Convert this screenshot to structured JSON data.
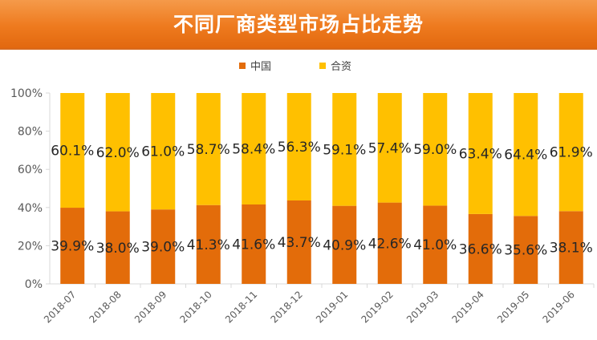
{
  "header": {
    "title": "不同厂商类型市场占比走势"
  },
  "chart_data": {
    "type": "bar",
    "stacked": true,
    "categories": [
      "2018-07",
      "2018-08",
      "2018-09",
      "2018-10",
      "2018-11",
      "2018-12",
      "2019-01",
      "2019-02",
      "2019-03",
      "2019-04",
      "2019-05",
      "2019-06"
    ],
    "series": [
      {
        "name": "中国",
        "color": "#e36c0a",
        "values": [
          39.9,
          38.0,
          39.0,
          41.3,
          41.6,
          43.7,
          40.9,
          42.6,
          41.0,
          36.6,
          35.6,
          38.1
        ],
        "labels": [
          "39.9%",
          "38.0%",
          "39.0%",
          "41.3%",
          "41.6%",
          "43.7%",
          "40.9%",
          "42.6%",
          "41.0%",
          "36.6%",
          "35.6%",
          "38.1%"
        ]
      },
      {
        "name": "合资",
        "color": "#ffc000",
        "values": [
          60.1,
          62.0,
          61.0,
          58.7,
          58.4,
          56.3,
          59.1,
          57.4,
          59.0,
          63.4,
          64.4,
          61.9
        ],
        "labels": [
          "60.1%",
          "62.0%",
          "61.0%",
          "58.7%",
          "58.4%",
          "56.3%",
          "59.1%",
          "57.4%",
          "59.0%",
          "63.4%",
          "64.4%",
          "61.9%"
        ]
      }
    ],
    "y_ticks": [
      "0%",
      "20%",
      "40%",
      "60%",
      "80%",
      "100%"
    ],
    "ylim": [
      0,
      100
    ],
    "legend_position": "top-center",
    "grid": false
  }
}
